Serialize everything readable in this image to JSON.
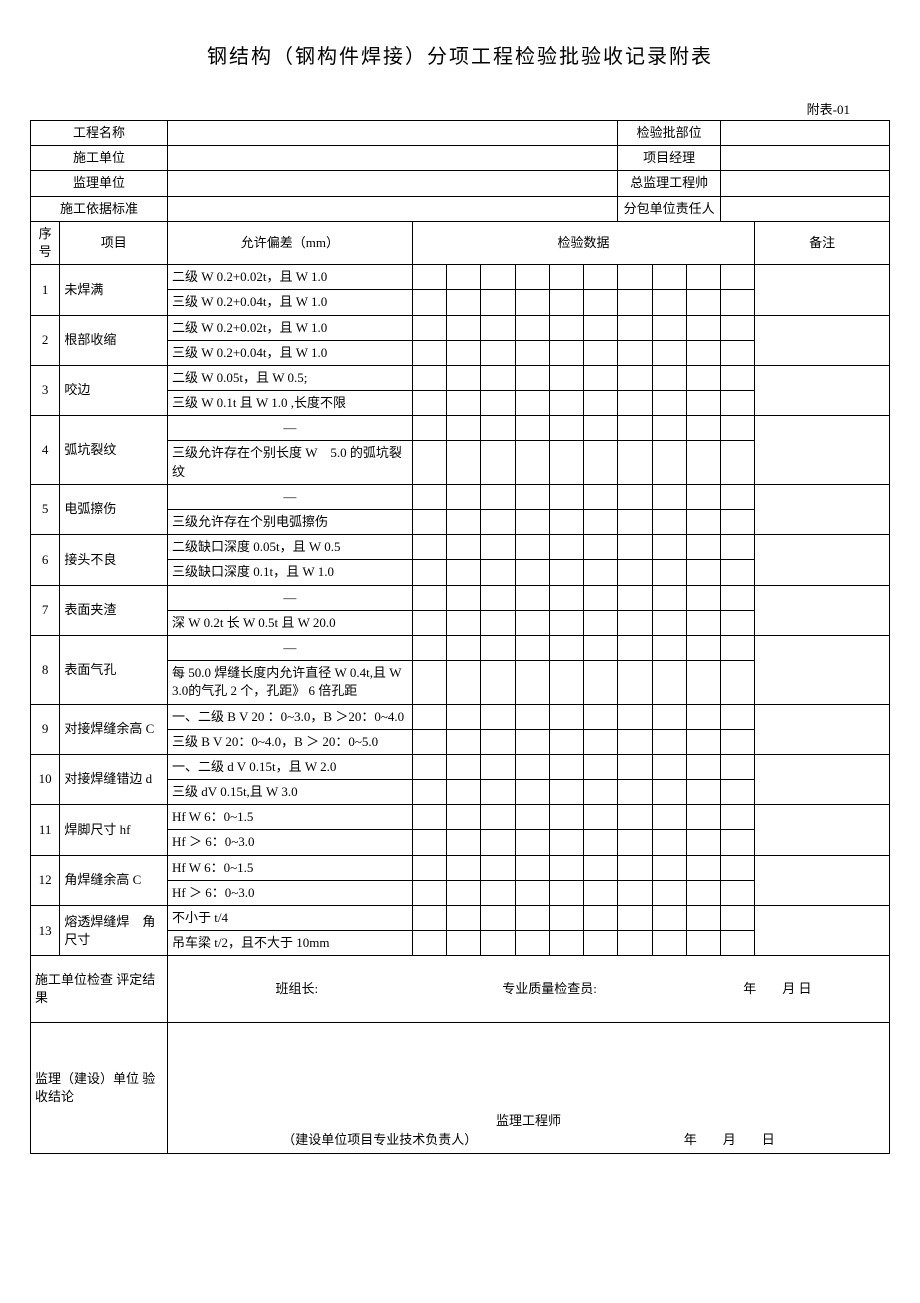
{
  "title": "钢结构（钢构件焊接）分项工程检验批验收记录附表",
  "attachment_label": "附表-01",
  "header": {
    "project_name": "工程名称",
    "inspection_unit": "检验批部位",
    "construction_unit": "施工单位",
    "project_manager": "项目经理",
    "supervision_unit": "监理单位",
    "chief_supervisor": "总监理工程帅",
    "standard": "施工依据标准",
    "subcontractor": "分包单位责任人"
  },
  "columns": {
    "seq": "序 号",
    "item": "项目",
    "deviation": "允许偏差（mm）",
    "data": "检验数据",
    "remark": "备注"
  },
  "rows": [
    {
      "seq": "1",
      "item": "未焊满",
      "dev": [
        "二级 W 0.2+0.02t，且 W 1.0",
        "三级 W 0.2+0.04t，且 W 1.0"
      ]
    },
    {
      "seq": "2",
      "item": "根部收缩",
      "dev": [
        "二级 W 0.2+0.02t，且 W 1.0",
        "三级 W 0.2+0.04t，且 W 1.0"
      ]
    },
    {
      "seq": "3",
      "item": "咬边",
      "dev": [
        "二级 W 0.05t，且 W 0.5;",
        "三级 W 0.1t 且 W 1.0 ,长度不限"
      ]
    },
    {
      "seq": "4",
      "item": "弧坑裂纹",
      "dev": [
        "—",
        "三级允许存在个别长度 W　5.0 的弧坑裂纹"
      ]
    },
    {
      "seq": "5",
      "item": "电弧擦伤",
      "dev": [
        "—",
        "三级允许存在个别电弧擦伤"
      ]
    },
    {
      "seq": "6",
      "item": "接头不良",
      "dev": [
        "二级缺口深度 0.05t，且 W 0.5",
        "三级缺口深度 0.1t，且 W 1.0"
      ]
    },
    {
      "seq": "7",
      "item": "表面夹渣",
      "dev": [
        "—",
        "深 W 0.2t 长 W 0.5t 且 W 20.0"
      ]
    },
    {
      "seq": "8",
      "item": "表面气孔",
      "dev": [
        "—",
        "每 50.0 焊缝长度内允许直径 W 0.4t,且 W 3.0的气孔 2 个，孔距》 6 倍孔距"
      ]
    },
    {
      "seq": "9",
      "item": "对接焊缝余高 C",
      "dev": [
        "一、二级 B V 20 ：0~3.0，B ＞20：0~4.0",
        "三级 B V 20：0~4.0，B ＞ 20：0~5.0"
      ]
    },
    {
      "seq": "10",
      "item": "对接焊缝错边 d",
      "dev": [
        "一、二级 d V 0.15t，且 W 2.0",
        "三级 dV 0.15t,且 W 3.0"
      ]
    },
    {
      "seq": "11",
      "item": "焊脚尺寸 hf",
      "dev": [
        "Hf W 6：0~1.5",
        "Hf ＞ 6：0~3.0"
      ]
    },
    {
      "seq": "12",
      "item": "角焊缝余高 C",
      "dev": [
        "Hf W 6：0~1.5",
        "Hf ＞ 6：0~3.0"
      ]
    },
    {
      "seq": "13",
      "item": "熔透焊缝焊　角尺寸",
      "dev": [
        "不小于 t/4",
        "吊车梁 t/2，且不大于 10mm"
      ]
    }
  ],
  "footer": {
    "construction_check": "施工单位检查 评定结果",
    "team_leader": "班组长:",
    "quality_inspector": "专业质量检查员:",
    "date_ymd": "年　　月 日",
    "supervision_conclusion": "监理（建设）单位 验收结论",
    "supervising_engineer": "监理工程师",
    "construction_tech": "（建设单位项目专业技术负责人）",
    "date_ymd2": "年　　月　　日"
  }
}
